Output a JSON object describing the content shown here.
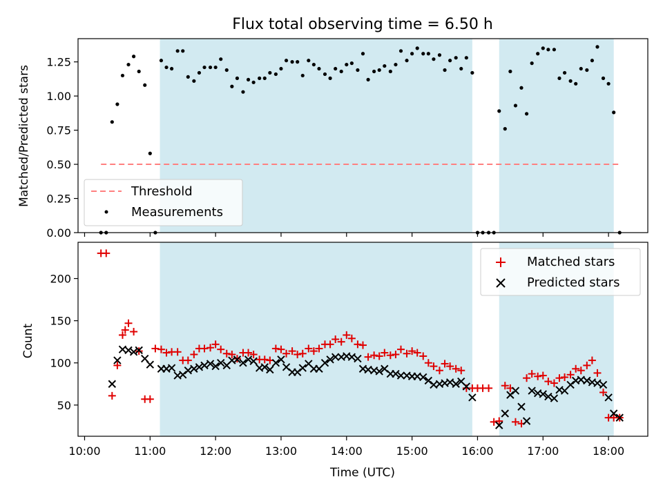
{
  "title": "Flux total observing time = 6.50 h",
  "colors": {
    "band": "#add8e6",
    "threshold": "#ff7f7f",
    "matched": "#e00000",
    "predicted": "#000000"
  },
  "chart_data": [
    {
      "type": "scatter",
      "panel": "top",
      "ylabel": "Matched/Predicted stars",
      "ylim": [
        0,
        1.42
      ],
      "yticks": [
        0,
        0.25,
        0.5,
        0.75,
        1.0,
        1.25
      ],
      "ytick_labels": [
        "0.00",
        "0.25",
        "0.50",
        "0.75",
        "1.00",
        "1.25"
      ],
      "shaded_intervals": [
        [
          11.15,
          15.92
        ],
        [
          16.33,
          18.08
        ]
      ],
      "threshold": {
        "label": "Threshold",
        "y": 0.5,
        "x_range": [
          10.25,
          18.17
        ]
      },
      "series": [
        {
          "name": "Measurements",
          "x": [
            10.25,
            10.33,
            10.42,
            10.5,
            10.58,
            10.67,
            10.75,
            10.83,
            10.92,
            11.0,
            11.08,
            11.17,
            11.25,
            11.33,
            11.42,
            11.5,
            11.58,
            11.67,
            11.75,
            11.83,
            11.92,
            12.0,
            12.08,
            12.17,
            12.25,
            12.33,
            12.42,
            12.5,
            12.58,
            12.67,
            12.75,
            12.83,
            12.92,
            13.0,
            13.08,
            13.17,
            13.25,
            13.33,
            13.42,
            13.5,
            13.58,
            13.67,
            13.75,
            13.83,
            13.92,
            14.0,
            14.08,
            14.17,
            14.25,
            14.33,
            14.42,
            14.5,
            14.58,
            14.67,
            14.75,
            14.83,
            14.92,
            15.0,
            15.08,
            15.17,
            15.25,
            15.33,
            15.42,
            15.5,
            15.58,
            15.67,
            15.75,
            15.83,
            15.92,
            16.0,
            16.08,
            16.17,
            16.25,
            16.33,
            16.42,
            16.5,
            16.58,
            16.67,
            16.75,
            16.83,
            16.92,
            17.0,
            17.08,
            17.17,
            17.25,
            17.33,
            17.42,
            17.5,
            17.58,
            17.67,
            17.75,
            17.83,
            17.92,
            18.0,
            18.08,
            18.17
          ],
          "y": [
            0,
            0,
            0.81,
            0.94,
            1.15,
            1.23,
            1.29,
            1.18,
            1.08,
            0.58,
            0,
            1.26,
            1.21,
            1.2,
            1.33,
            1.33,
            1.14,
            1.11,
            1.17,
            1.21,
            1.21,
            1.21,
            1.27,
            1.19,
            1.07,
            1.13,
            1.03,
            1.12,
            1.1,
            1.13,
            1.13,
            1.17,
            1.16,
            1.2,
            1.26,
            1.25,
            1.25,
            1.15,
            1.26,
            1.23,
            1.2,
            1.16,
            1.13,
            1.2,
            1.18,
            1.23,
            1.24,
            1.19,
            1.31,
            1.12,
            1.18,
            1.19,
            1.22,
            1.18,
            1.23,
            1.33,
            1.26,
            1.31,
            1.35,
            1.31,
            1.31,
            1.27,
            1.3,
            1.19,
            1.26,
            1.28,
            1.2,
            1.28,
            1.17,
            0,
            0,
            0,
            0,
            0.89,
            0.76,
            1.18,
            0.93,
            1.06,
            0.87,
            1.24,
            1.31,
            1.35,
            1.34,
            1.34,
            1.13,
            1.17,
            1.11,
            1.09,
            1.2,
            1.19,
            1.26,
            1.36,
            1.13,
            1.09,
            0.88,
            0
          ]
        }
      ],
      "legend": [
        "Threshold",
        "Measurements"
      ],
      "legend_loc": "lower-left"
    },
    {
      "type": "scatter",
      "panel": "bottom",
      "xlabel": "Time (UTC)",
      "ylabel": "Count",
      "xlim": [
        9.9,
        18.6
      ],
      "ylim": [
        13,
        243
      ],
      "xticks": [
        10,
        11,
        12,
        13,
        14,
        15,
        16,
        17,
        18
      ],
      "xtick_labels": [
        "10:00",
        "11:00",
        "12:00",
        "13:00",
        "14:00",
        "15:00",
        "16:00",
        "17:00",
        "18:00"
      ],
      "yticks": [
        50,
        100,
        150,
        200
      ],
      "ytick_labels": [
        "50",
        "100",
        "150",
        "200"
      ],
      "shaded_intervals": [
        [
          11.15,
          15.92
        ],
        [
          16.33,
          18.08
        ]
      ],
      "series": [
        {
          "name": "Matched stars",
          "marker": "plus",
          "x": [
            10.25,
            10.33,
            10.42,
            10.5,
            10.58,
            10.62,
            10.67,
            10.75,
            10.83,
            10.92,
            11.0,
            11.08,
            11.17,
            11.25,
            11.33,
            11.42,
            11.5,
            11.58,
            11.67,
            11.75,
            11.83,
            11.92,
            12.0,
            12.08,
            12.17,
            12.25,
            12.33,
            12.42,
            12.5,
            12.58,
            12.67,
            12.75,
            12.83,
            12.92,
            13.0,
            13.08,
            13.17,
            13.25,
            13.33,
            13.42,
            13.5,
            13.58,
            13.67,
            13.75,
            13.83,
            13.92,
            14.0,
            14.08,
            14.17,
            14.25,
            14.33,
            14.42,
            14.5,
            14.58,
            14.67,
            14.75,
            14.83,
            14.92,
            15.0,
            15.08,
            15.17,
            15.25,
            15.33,
            15.42,
            15.5,
            15.58,
            15.67,
            15.75,
            15.83,
            15.92,
            16.0,
            16.08,
            16.17,
            16.25,
            16.33,
            16.42,
            16.5,
            16.58,
            16.67,
            16.75,
            16.83,
            16.92,
            17.0,
            17.08,
            17.17,
            17.25,
            17.33,
            17.42,
            17.5,
            17.58,
            17.67,
            17.75,
            17.83,
            17.92,
            18.0,
            18.08,
            18.17
          ],
          "y": [
            230,
            230,
            61,
            97,
            133,
            139,
            147,
            137,
            114,
            57,
            57,
            117,
            116,
            112,
            113,
            113,
            103,
            103,
            110,
            117,
            117,
            118,
            122,
            116,
            111,
            110,
            105,
            112,
            112,
            110,
            104,
            104,
            103,
            117,
            116,
            111,
            114,
            110,
            111,
            117,
            114,
            117,
            122,
            122,
            128,
            125,
            133,
            129,
            122,
            121,
            107,
            109,
            108,
            112,
            109,
            110,
            116,
            111,
            114,
            112,
            108,
            100,
            96,
            91,
            99,
            96,
            93,
            91,
            70,
            70,
            70,
            70,
            70,
            30,
            31,
            73,
            70,
            30,
            28,
            82,
            87,
            84,
            85,
            78,
            76,
            82,
            83,
            86,
            93,
            91,
            97,
            103,
            88,
            65,
            35,
            35,
            35
          ]
        },
        {
          "name": "Predicted stars",
          "marker": "x",
          "x": [
            10.42,
            10.5,
            10.58,
            10.67,
            10.75,
            10.83,
            10.92,
            11.0,
            11.17,
            11.25,
            11.33,
            11.42,
            11.5,
            11.58,
            11.67,
            11.75,
            11.83,
            11.92,
            12.0,
            12.08,
            12.17,
            12.25,
            12.33,
            12.42,
            12.5,
            12.58,
            12.67,
            12.75,
            12.83,
            12.92,
            13.0,
            13.08,
            13.17,
            13.25,
            13.33,
            13.42,
            13.5,
            13.58,
            13.67,
            13.75,
            13.83,
            13.92,
            14.0,
            14.08,
            14.17,
            14.25,
            14.33,
            14.42,
            14.5,
            14.58,
            14.67,
            14.75,
            14.83,
            14.92,
            15.0,
            15.08,
            15.17,
            15.25,
            15.33,
            15.42,
            15.5,
            15.58,
            15.67,
            15.75,
            15.83,
            15.92,
            16.33,
            16.42,
            16.5,
            16.58,
            16.67,
            16.75,
            16.83,
            16.92,
            17.0,
            17.08,
            17.17,
            17.25,
            17.33,
            17.42,
            17.5,
            17.58,
            17.67,
            17.75,
            17.83,
            17.92,
            18.0,
            18.08,
            18.17
          ],
          "y": [
            75,
            103,
            116,
            115,
            113,
            115,
            105,
            98,
            93,
            93,
            94,
            85,
            86,
            91,
            93,
            95,
            97,
            99,
            96,
            100,
            97,
            103,
            104,
            100,
            104,
            102,
            94,
            95,
            92,
            100,
            104,
            95,
            89,
            89,
            94,
            99,
            93,
            93,
            100,
            104,
            107,
            107,
            108,
            107,
            105,
            93,
            92,
            91,
            90,
            93,
            87,
            87,
            85,
            85,
            84,
            84,
            83,
            79,
            74,
            75,
            76,
            77,
            75,
            78,
            72,
            59,
            26,
            40,
            62,
            67,
            48,
            31,
            67,
            64,
            63,
            60,
            58,
            68,
            67,
            74,
            79,
            80,
            79,
            77,
            76,
            74,
            59,
            40,
            35
          ]
        }
      ],
      "legend": [
        "Matched stars",
        "Predicted stars"
      ],
      "legend_loc": "upper-right"
    }
  ]
}
